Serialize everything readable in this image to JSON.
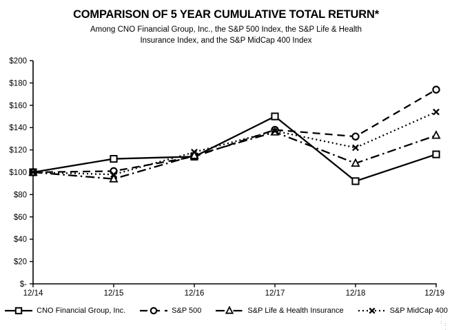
{
  "title": "COMPARISON OF 5 YEAR CUMULATIVE TOTAL RETURN*",
  "subtitle_line1": "Among CNO Financial Group, Inc., the S&P 500 Index, the S&P Life & Health",
  "subtitle_line2": "Insurance Index, and the S&P MidCap 400 Index",
  "chart_data": {
    "type": "line",
    "x": [
      "12/14",
      "12/15",
      "12/16",
      "12/17",
      "12/18",
      "12/19"
    ],
    "series": [
      {
        "name": "CNO Financial Group, Inc.",
        "values": [
          100,
          112,
          114,
          150,
          92,
          116
        ],
        "line_style": "solid",
        "marker": "square"
      },
      {
        "name": "S&P 500",
        "values": [
          100,
          101,
          114,
          138,
          132,
          174
        ],
        "line_style": "dashed",
        "marker": "circle"
      },
      {
        "name": "S&P Life & Health Insurance",
        "values": [
          100,
          94,
          115,
          136,
          108,
          133
        ],
        "line_style": "dashdot",
        "marker": "triangle"
      },
      {
        "name": "S&P MidCap 400",
        "values": [
          100,
          98,
          118,
          137,
          122,
          154
        ],
        "line_style": "dotted",
        "marker": "x"
      }
    ],
    "ylim": [
      0,
      200
    ],
    "ytick_step": 20,
    "ytick_labels": [
      "$-",
      "$20",
      "$40",
      "$60",
      "$80",
      "$100",
      "$120",
      "$140",
      "$160",
      "$180",
      "$200"
    ],
    "line_color": "#000000",
    "grid": false,
    "legend_position": "bottom"
  }
}
